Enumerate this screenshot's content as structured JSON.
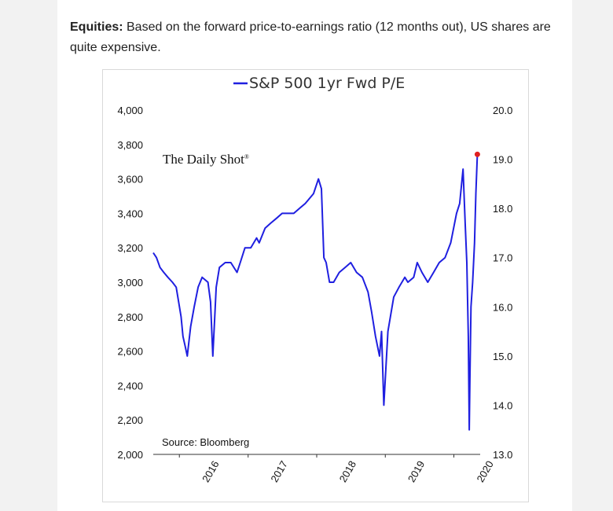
{
  "intro": {
    "label": "Equities:",
    "text": " Based on the forward price-to-earnings ratio (12 months out), US shares are quite expensive."
  },
  "chart_data": {
    "type": "line",
    "title": "S&P 500 1yr Fwd P/E",
    "series": [
      {
        "name": "S&P 500 1yr Fwd P/E",
        "color": "#1f1fe0",
        "x": [
          "2015-08-15",
          "2015-09-01",
          "2015-09-20",
          "2015-10-10",
          "2015-11-01",
          "2015-11-25",
          "2015-12-15",
          "2016-01-10",
          "2016-01-20",
          "2016-02-01",
          "2016-02-12",
          "2016-03-01",
          "2016-03-20",
          "2016-04-10",
          "2016-05-01",
          "2016-06-01",
          "2016-06-15",
          "2016-06-27",
          "2016-07-15",
          "2016-08-01",
          "2016-09-01",
          "2016-10-01",
          "2016-11-03",
          "2016-11-20",
          "2016-12-15",
          "2017-01-15",
          "2017-02-15",
          "2017-03-01",
          "2017-04-01",
          "2017-05-01",
          "2017-06-01",
          "2017-07-01",
          "2017-08-01",
          "2017-09-01",
          "2017-10-01",
          "2017-11-01",
          "2017-12-15",
          "2018-01-10",
          "2018-01-26",
          "2018-02-08",
          "2018-02-20",
          "2018-03-10",
          "2018-04-01",
          "2018-05-01",
          "2018-06-01",
          "2018-07-01",
          "2018-08-01",
          "2018-09-01",
          "2018-10-01",
          "2018-10-20",
          "2018-11-10",
          "2018-12-01",
          "2018-12-12",
          "2018-12-24",
          "2019-01-15",
          "2019-02-15",
          "2019-03-15",
          "2019-04-15",
          "2019-05-01",
          "2019-06-01",
          "2019-06-20",
          "2019-07-15",
          "2019-08-15",
          "2019-09-15",
          "2019-10-15",
          "2019-11-15",
          "2019-12-15",
          "2020-01-15",
          "2020-02-01",
          "2020-02-19",
          "2020-03-01",
          "2020-03-10",
          "2020-03-18",
          "2020-03-23",
          "2020-03-26",
          "2020-04-01",
          "2020-04-10",
          "2020-04-20",
          "2020-04-27",
          "2020-05-05"
        ],
        "y": [
          17.1,
          17.0,
          16.8,
          16.7,
          16.6,
          16.5,
          16.4,
          15.8,
          15.4,
          15.2,
          15.0,
          15.6,
          16.0,
          16.4,
          16.6,
          16.5,
          16.1,
          15.0,
          16.4,
          16.8,
          16.9,
          16.9,
          16.7,
          16.9,
          17.2,
          17.2,
          17.4,
          17.3,
          17.6,
          17.7,
          17.8,
          17.9,
          17.9,
          17.9,
          18.0,
          18.1,
          18.3,
          18.6,
          18.4,
          17.0,
          16.9,
          16.5,
          16.5,
          16.7,
          16.8,
          16.9,
          16.7,
          16.6,
          16.3,
          15.9,
          15.4,
          15.0,
          15.5,
          14.0,
          15.5,
          16.2,
          16.4,
          16.6,
          16.5,
          16.6,
          16.9,
          16.7,
          16.5,
          16.7,
          16.9,
          17.0,
          17.3,
          17.9,
          18.1,
          18.8,
          17.7,
          16.9,
          15.4,
          13.5,
          14.5,
          16.0,
          16.5,
          17.3,
          18.3,
          19.1
        ]
      }
    ],
    "last_point_marker": {
      "x": "2020-05-05",
      "y": 19.1,
      "color": "#e02020"
    },
    "xlim": [
      "2015-08-15",
      "2020-05-20"
    ],
    "x_ticks": [
      "2016",
      "2017",
      "2018",
      "2019",
      "2020"
    ],
    "y_left": {
      "ticks": [
        "4,000",
        "3,800",
        "3,600",
        "3,400",
        "3,200",
        "3,000",
        "2,800",
        "2,600",
        "2,400",
        "2,200",
        "2,000"
      ],
      "ylim": [
        2000,
        4000
      ]
    },
    "y_right": {
      "ticks": [
        "20.0",
        "19.0",
        "18.0",
        "17.0",
        "16.0",
        "15.0",
        "14.0",
        "13.0"
      ],
      "ylim": [
        13.0,
        20.0
      ]
    },
    "brand": "The Daily Shot",
    "brand_mark": "®",
    "source": "Source: Bloomberg",
    "grid": false,
    "legend_position": "top"
  }
}
